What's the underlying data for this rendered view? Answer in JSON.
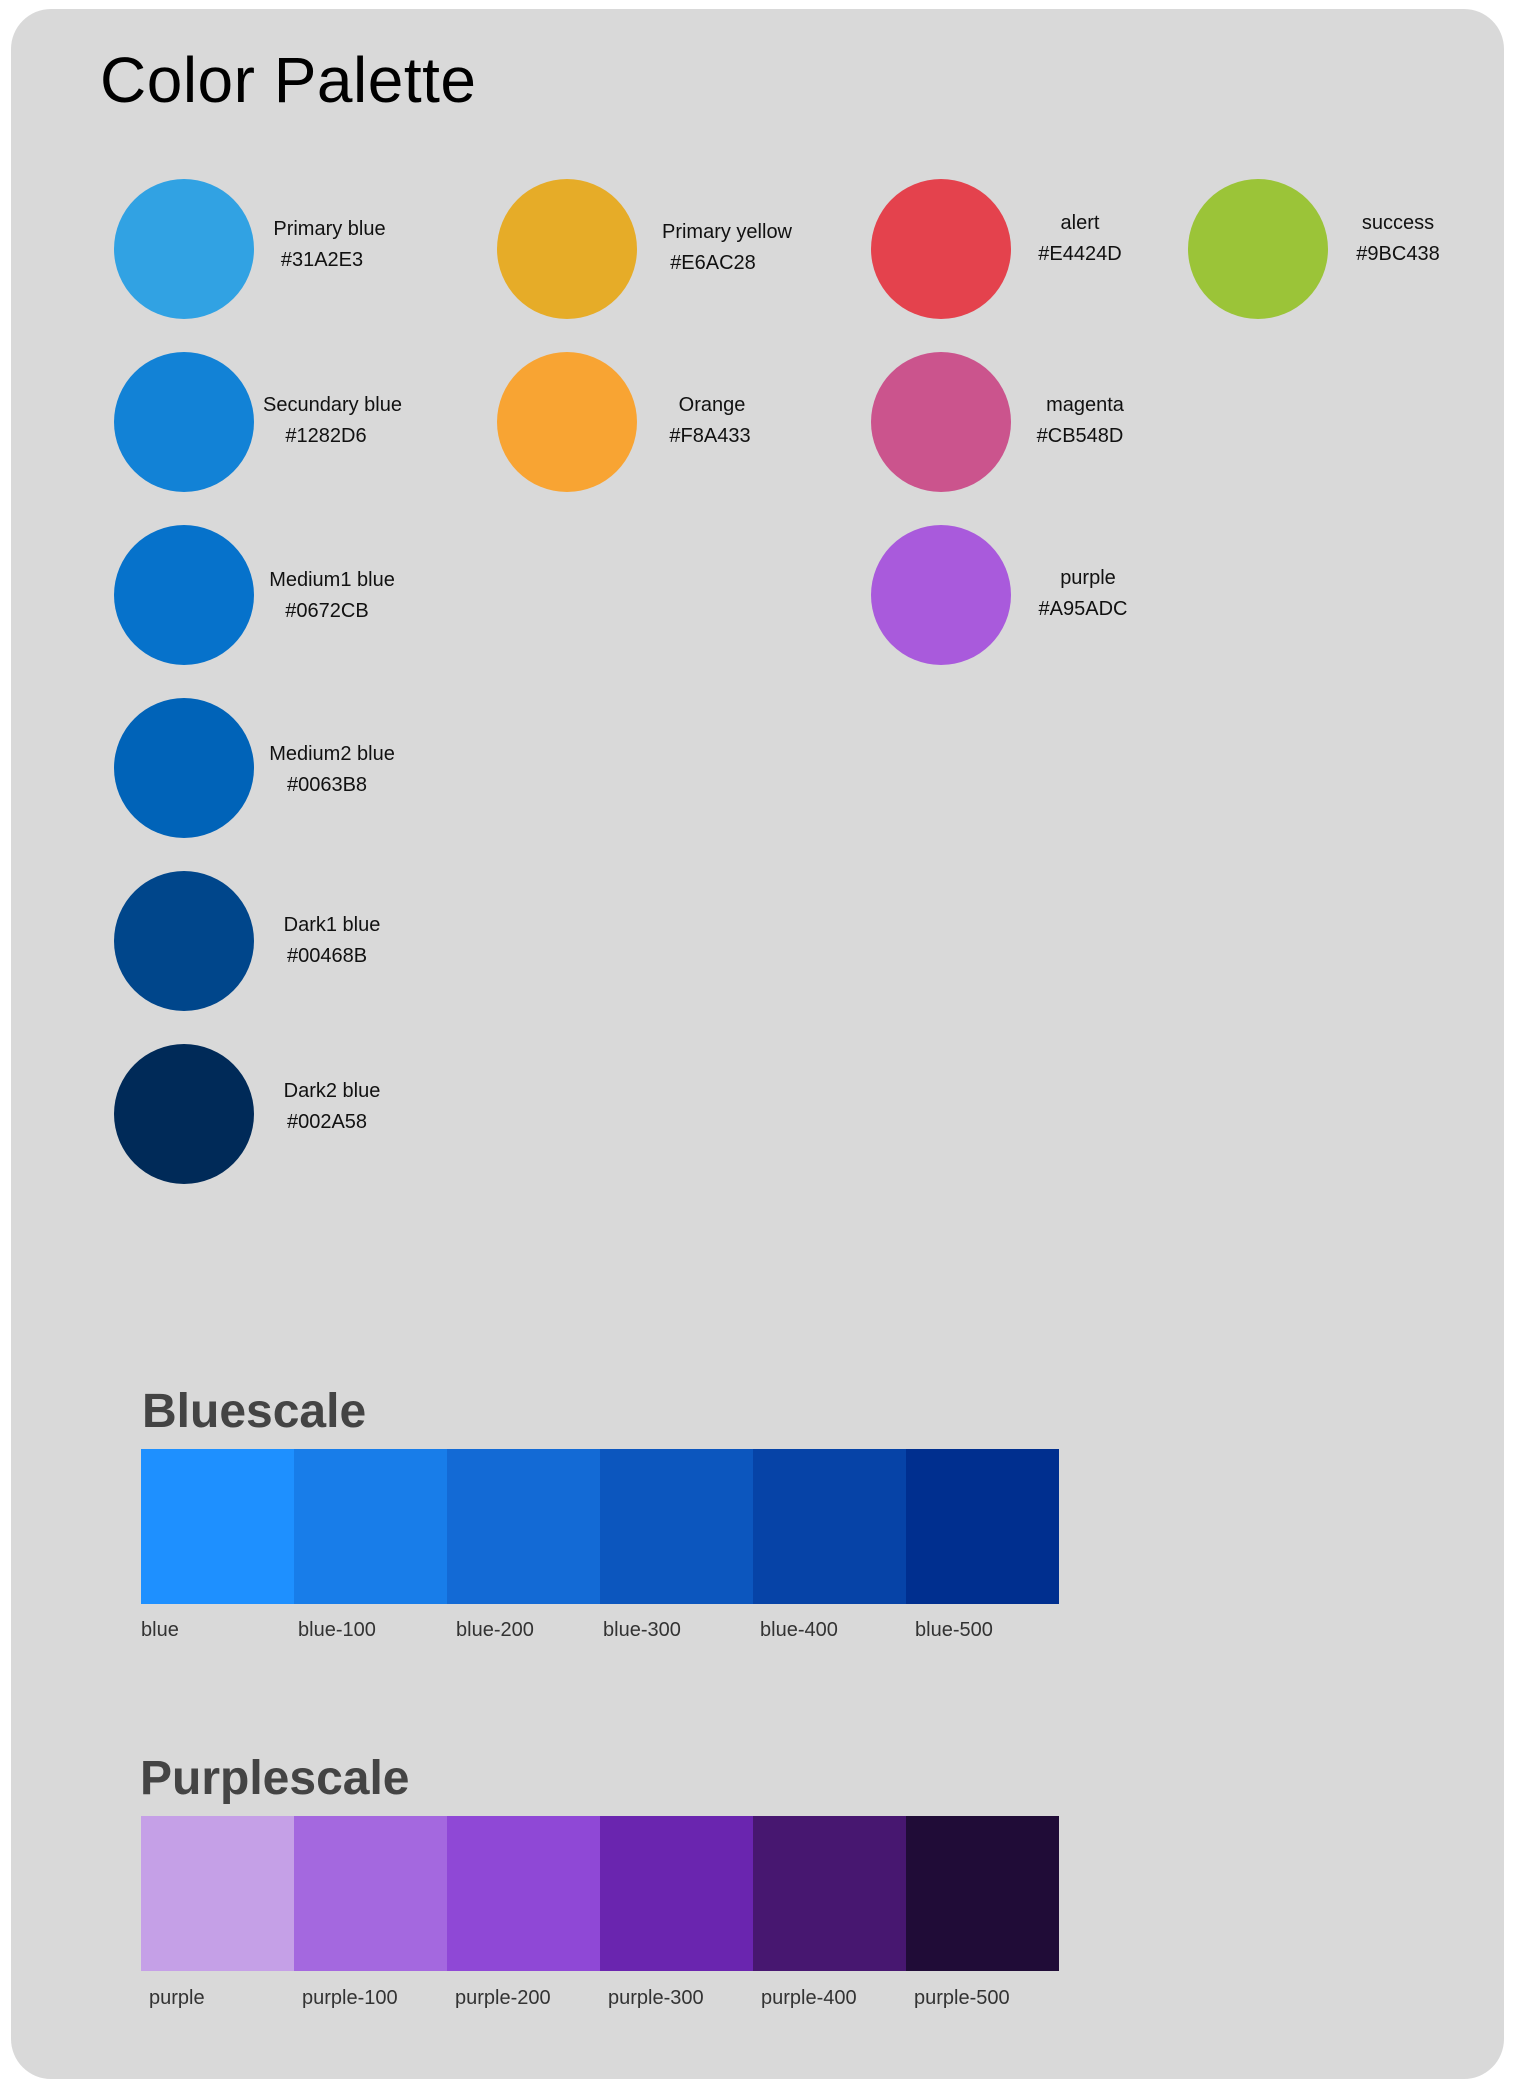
{
  "page_title": "Color Palette",
  "swatches": [
    {
      "name": "Primary blue",
      "hex": "#31A2E3",
      "color": "#31A2E3"
    },
    {
      "name": "Secundary blue",
      "hex": "#1282D6",
      "color": "#1282D6"
    },
    {
      "name": "Medium1 blue",
      "hex": "#0672CB",
      "color": "#0672CB"
    },
    {
      "name": "Medium2 blue",
      "hex": "#0063B8",
      "color": "#0063B8"
    },
    {
      "name": "Dark1 blue",
      "hex": "#00468B",
      "color": "#00468B"
    },
    {
      "name": "Dark2 blue",
      "hex": "#002A58",
      "color": "#002A58"
    },
    {
      "name": "Primary yellow",
      "hex": "#E6AC28",
      "color": "#E6AC28"
    },
    {
      "name": "Orange",
      "hex": "#F8A433",
      "color": "#F8A433"
    },
    {
      "name": "alert",
      "hex": "#E4424D",
      "color": "#E4424D"
    },
    {
      "name": "magenta",
      "hex": "#CB548D",
      "color": "#CB548D"
    },
    {
      "name": "purple",
      "hex": "#A95ADC",
      "color": "#A95ADC"
    },
    {
      "name": "success",
      "hex": "#9BC438",
      "color": "#9BC438"
    }
  ],
  "bluescale": {
    "title": "Bluescale",
    "cells": [
      {
        "label": "blue",
        "color": "#1E90FF"
      },
      {
        "label": "blue-100",
        "color": "#187DE9"
      },
      {
        "label": "blue-200",
        "color": "#136AD5"
      },
      {
        "label": "blue-300",
        "color": "#0C56BE"
      },
      {
        "label": "blue-400",
        "color": "#0643A7"
      },
      {
        "label": "blue-500",
        "color": "#002F8F"
      }
    ]
  },
  "purplescale": {
    "title": "Purplescale",
    "cells": [
      {
        "label": "purple",
        "color": "#C5A0E7"
      },
      {
        "label": "purple-100",
        "color": "#A468DF"
      },
      {
        "label": "purple-200",
        "color": "#8F48D6"
      },
      {
        "label": "purple-300",
        "color": "#6A25AF"
      },
      {
        "label": "purple-400",
        "color": "#471770"
      },
      {
        "label": "purple-500",
        "color": "#200C37"
      }
    ]
  }
}
